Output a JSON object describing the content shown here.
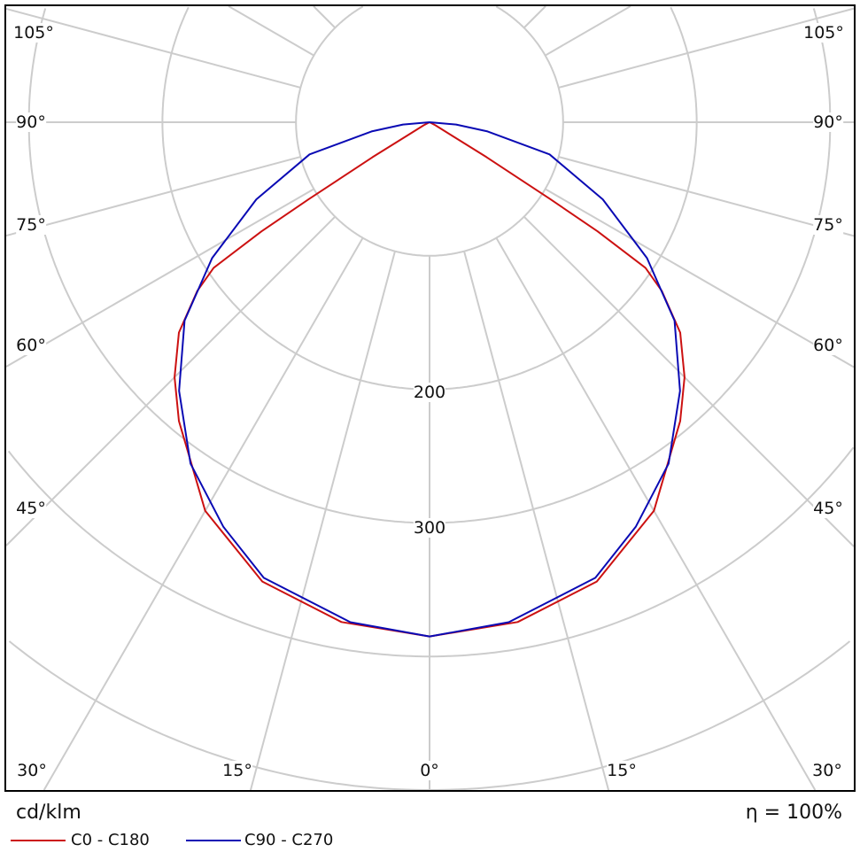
{
  "chart_data": {
    "type": "polar",
    "unit_label": "cd/klm",
    "efficiency_label": "η = 100%",
    "radial_ticks": [
      100,
      200,
      300,
      400,
      500
    ],
    "radial_tick_labels": [
      "200",
      "300"
    ],
    "angle_step_deg": 15,
    "angle_labels": {
      "left": [
        "105°",
        "90°",
        "75°",
        "60°",
        "45°",
        "30°"
      ],
      "bottom": [
        "15°",
        "0°",
        "15°"
      ],
      "right": [
        "105°",
        "90°",
        "75°",
        "60°",
        "45°",
        "30°"
      ]
    },
    "series": [
      {
        "name": "C0 - C180",
        "color": "#cc1111",
        "angles": [
          0,
          10,
          20,
          30,
          40,
          45,
          50,
          54,
          56,
          57,
          57.5,
          58.5,
          59,
          62,
          90
        ],
        "values": [
          385,
          380,
          366,
          336,
          292,
          270,
          245,
          215,
          195,
          150,
          107,
          50,
          20,
          5,
          0
        ]
      },
      {
        "name": "C90 - C270",
        "color": "#0a0ab4",
        "angles": [
          0,
          9,
          20,
          27,
          35,
          43,
          51,
          58,
          66,
          75,
          81,
          85,
          90
        ],
        "values": [
          385,
          379,
          363,
          340,
          312,
          275,
          236,
          192,
          142,
          93,
          44,
          20,
          0
        ]
      }
    ]
  }
}
